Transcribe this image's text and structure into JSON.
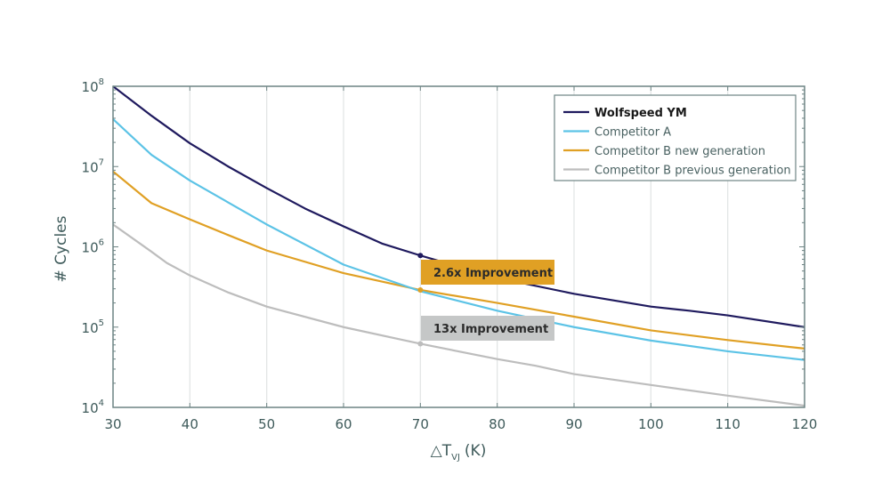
{
  "chart_data": {
    "type": "line",
    "xlabel": "△T",
    "xlabel_sub": "VJ",
    "xlabel_unit": "(K)",
    "ylabel": "# Cycles",
    "xlim": [
      30,
      120
    ],
    "ylim": [
      10000,
      100000000
    ],
    "yscale": "log",
    "x_ticks": [
      "30",
      "40",
      "50",
      "60",
      "70",
      "80",
      "90",
      "100",
      "110",
      "120"
    ],
    "y_ticks": [
      {
        "base": "10",
        "exp": "4"
      },
      {
        "base": "10",
        "exp": "5"
      },
      {
        "base": "10",
        "exp": "6"
      },
      {
        "base": "10",
        "exp": "7"
      },
      {
        "base": "10",
        "exp": "8"
      }
    ],
    "grid": "vertical",
    "legend_position": "top-right",
    "series": [
      {
        "name": "Wolfspeed YM",
        "color": "#1f1a5e",
        "x": [
          30,
          35,
          40,
          45,
          50,
          55,
          60,
          65,
          70,
          80,
          90,
          100,
          105,
          110,
          120
        ],
        "y": [
          100000000,
          43000000,
          19500000,
          10000000,
          5400000,
          3000000,
          1800000,
          1100000,
          780000,
          410000,
          260000,
          180000,
          160000,
          140000,
          100000
        ]
      },
      {
        "name": "Competitor A",
        "color": "#5cc3e6",
        "x": [
          30,
          35,
          40,
          50,
          60,
          70,
          80,
          90,
          100,
          110,
          120
        ],
        "y": [
          39000000,
          14000000,
          6700000,
          1900000,
          600000,
          280000,
          160000,
          100000,
          68000,
          50000,
          39000
        ]
      },
      {
        "name": "Competitor B new generation",
        "color": "#e0a024",
        "x": [
          30,
          35,
          40,
          45,
          50,
          60,
          70,
          80,
          90,
          100,
          110,
          120
        ],
        "y": [
          8700000,
          3500000,
          2200000,
          1400000,
          900000,
          470000,
          290000,
          200000,
          135000,
          91000,
          69000,
          54000
        ]
      },
      {
        "name": "Competitor B previous generation",
        "color": "#bdbdbd",
        "x": [
          30,
          35,
          37,
          40,
          45,
          50,
          60,
          70,
          80,
          85,
          90,
          100,
          110,
          120
        ],
        "y": [
          1900000,
          870000,
          630000,
          440000,
          270000,
          180000,
          100000,
          62000,
          40000,
          33000,
          26000,
          19000,
          14000,
          10500
        ]
      }
    ],
    "markers": [
      {
        "series": 0,
        "x": 70,
        "y": 780000
      },
      {
        "series": 2,
        "x": 70,
        "y": 290000
      },
      {
        "series": 3,
        "x": 70,
        "y": 62000
      }
    ],
    "annotations": [
      {
        "text": "2.6x Improvement",
        "color": "#e0a024"
      },
      {
        "text": "13x Improvement",
        "color": "#c5c7c7"
      }
    ]
  }
}
